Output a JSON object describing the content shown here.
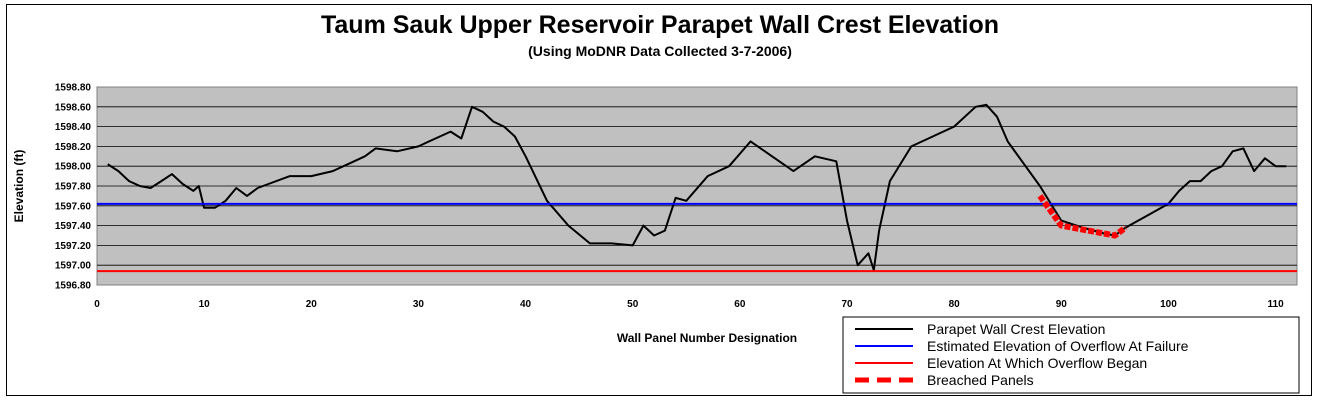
{
  "chart_data": {
    "type": "line",
    "title": "Taum Sauk Upper Reservoir Parapet Wall Crest Elevation",
    "subtitle": "(Using MoDNR Data Collected 3-7-2006)",
    "xlabel": "Wall Panel Number Designation",
    "ylabel": "Elevation (ft)",
    "xlim": [
      0,
      112
    ],
    "ylim": [
      1596.8,
      1598.8
    ],
    "xticks": [
      "0",
      "10",
      "20",
      "30",
      "40",
      "50",
      "60",
      "70",
      "80",
      "90",
      "100",
      "110"
    ],
    "yticks": [
      "1596.80",
      "1597.00",
      "1597.20",
      "1597.40",
      "1597.60",
      "1597.80",
      "1598.00",
      "1598.20",
      "1598.40",
      "1598.60",
      "1598.80"
    ],
    "grid": true,
    "legend_position": "bottom-right",
    "series": [
      {
        "name": "Parapet Wall Crest Elevation",
        "color": "#000000",
        "x": [
          1,
          2,
          3,
          4,
          5,
          6,
          7,
          8,
          9,
          9.5,
          10,
          11,
          12,
          13,
          14,
          15,
          16,
          18,
          20,
          22,
          24,
          25,
          26,
          28,
          30,
          31,
          32,
          33,
          34,
          35,
          36,
          37,
          38,
          39,
          40,
          42,
          44,
          46,
          48,
          50,
          51,
          52,
          53,
          54,
          55,
          57,
          59,
          61,
          63,
          65,
          67,
          69,
          70,
          71,
          72,
          72.5,
          73,
          74,
          76,
          78,
          80,
          81,
          82,
          83,
          84,
          85,
          86,
          88,
          90,
          92,
          94,
          95,
          96,
          98,
          100,
          101,
          102,
          103,
          104,
          105,
          106,
          107,
          108,
          109,
          110,
          111
        ],
        "y": [
          1598.02,
          1597.95,
          1597.85,
          1597.8,
          1597.78,
          1597.85,
          1597.92,
          1597.82,
          1597.75,
          1597.8,
          1597.58,
          1597.58,
          1597.65,
          1597.78,
          1597.7,
          1597.78,
          1597.82,
          1597.9,
          1597.9,
          1597.95,
          1598.05,
          1598.1,
          1598.18,
          1598.15,
          1598.2,
          1598.25,
          1598.3,
          1598.35,
          1598.28,
          1598.6,
          1598.55,
          1598.45,
          1598.4,
          1598.3,
          1598.1,
          1597.65,
          1597.4,
          1597.22,
          1597.22,
          1597.2,
          1597.4,
          1597.3,
          1597.35,
          1597.68,
          1597.65,
          1597.9,
          1598.0,
          1598.25,
          1598.1,
          1597.95,
          1598.1,
          1598.05,
          1597.45,
          1597.0,
          1597.12,
          1596.95,
          1597.35,
          1597.85,
          1598.2,
          1598.3,
          1598.4,
          1598.5,
          1598.6,
          1598.62,
          1598.5,
          1598.25,
          1598.1,
          1597.8,
          1597.45,
          1597.38,
          1597.32,
          1597.3,
          1597.38,
          1597.5,
          1597.62,
          1597.75,
          1597.85,
          1597.85,
          1597.95,
          1598.0,
          1598.15,
          1598.18,
          1597.95,
          1598.08,
          1598.0,
          1598.0
        ]
      },
      {
        "name": "Estimated Elevation of Overflow At Failure",
        "color": "#0000ff",
        "y_constant": 1597.62
      },
      {
        "name": "Elevation At Which Overflow Began",
        "color": "#ff0000",
        "y_constant": 1596.94
      },
      {
        "name": "Breached Panels",
        "color": "#ff0000",
        "dashed": true,
        "x": [
          88,
          89,
          90,
          92,
          94,
          95,
          96
        ],
        "y": [
          1597.7,
          1597.55,
          1597.4,
          1597.36,
          1597.32,
          1597.3,
          1597.38
        ]
      }
    ]
  }
}
